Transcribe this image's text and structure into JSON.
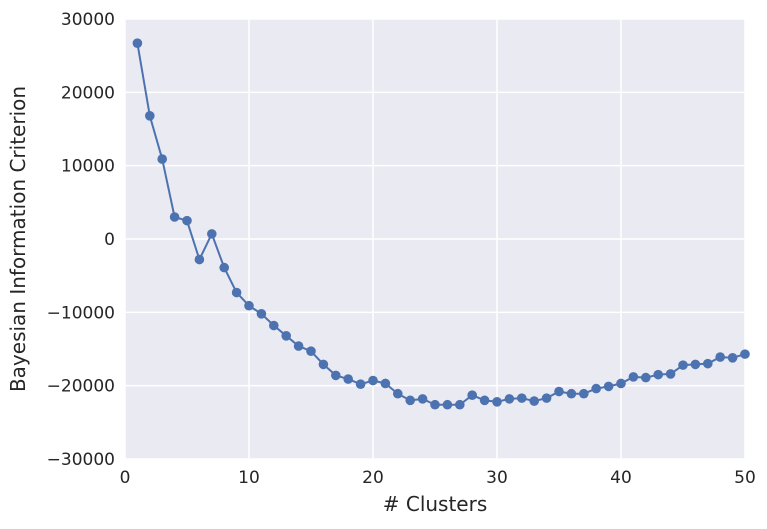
{
  "chart_data": {
    "type": "line",
    "title": "",
    "xlabel": "# Clusters",
    "ylabel": "Bayesian Information Criterion",
    "xlim": [
      0,
      50
    ],
    "ylim": [
      -30000,
      30000
    ],
    "xticks": [
      0,
      10,
      20,
      30,
      40,
      50
    ],
    "yticks": [
      -30000,
      -20000,
      -10000,
      0,
      10000,
      20000,
      30000
    ],
    "xtick_labels": [
      "0",
      "10",
      "20",
      "30",
      "40",
      "50"
    ],
    "ytick_labels": [
      "−30000",
      "−20000",
      "−10000",
      "0",
      "10000",
      "20000",
      "30000"
    ],
    "grid": true,
    "background_color": "#EAEAF2",
    "grid_color": "#FFFFFF",
    "series": [
      {
        "color": "#4C72B0",
        "x": [
          1,
          2,
          3,
          4,
          5,
          6,
          7,
          8,
          9,
          10,
          11,
          12,
          13,
          14,
          15,
          16,
          17,
          18,
          19,
          20,
          21,
          22,
          23,
          24,
          25,
          26,
          27,
          28,
          29,
          30,
          31,
          32,
          33,
          34,
          35,
          36,
          37,
          38,
          39,
          40,
          41,
          42,
          43,
          44,
          45,
          46,
          47,
          48,
          49,
          50
        ],
        "y": [
          26700,
          16800,
          10900,
          3000,
          2500,
          -2800,
          700,
          -3900,
          -7300,
          -9100,
          -10200,
          -11800,
          -13200,
          -14600,
          -15300,
          -17100,
          -18600,
          -19100,
          -19800,
          -19300,
          -19700,
          -21100,
          -22000,
          -21800,
          -22600,
          -22600,
          -22600,
          -21300,
          -22000,
          -22200,
          -21800,
          -21700,
          -22100,
          -21700,
          -20800,
          -21100,
          -21100,
          -20400,
          -20100,
          -19700,
          -18800,
          -18900,
          -18500,
          -18400,
          -17200,
          -17100,
          -17000,
          -16100,
          -16200,
          -15700
        ]
      }
    ]
  }
}
